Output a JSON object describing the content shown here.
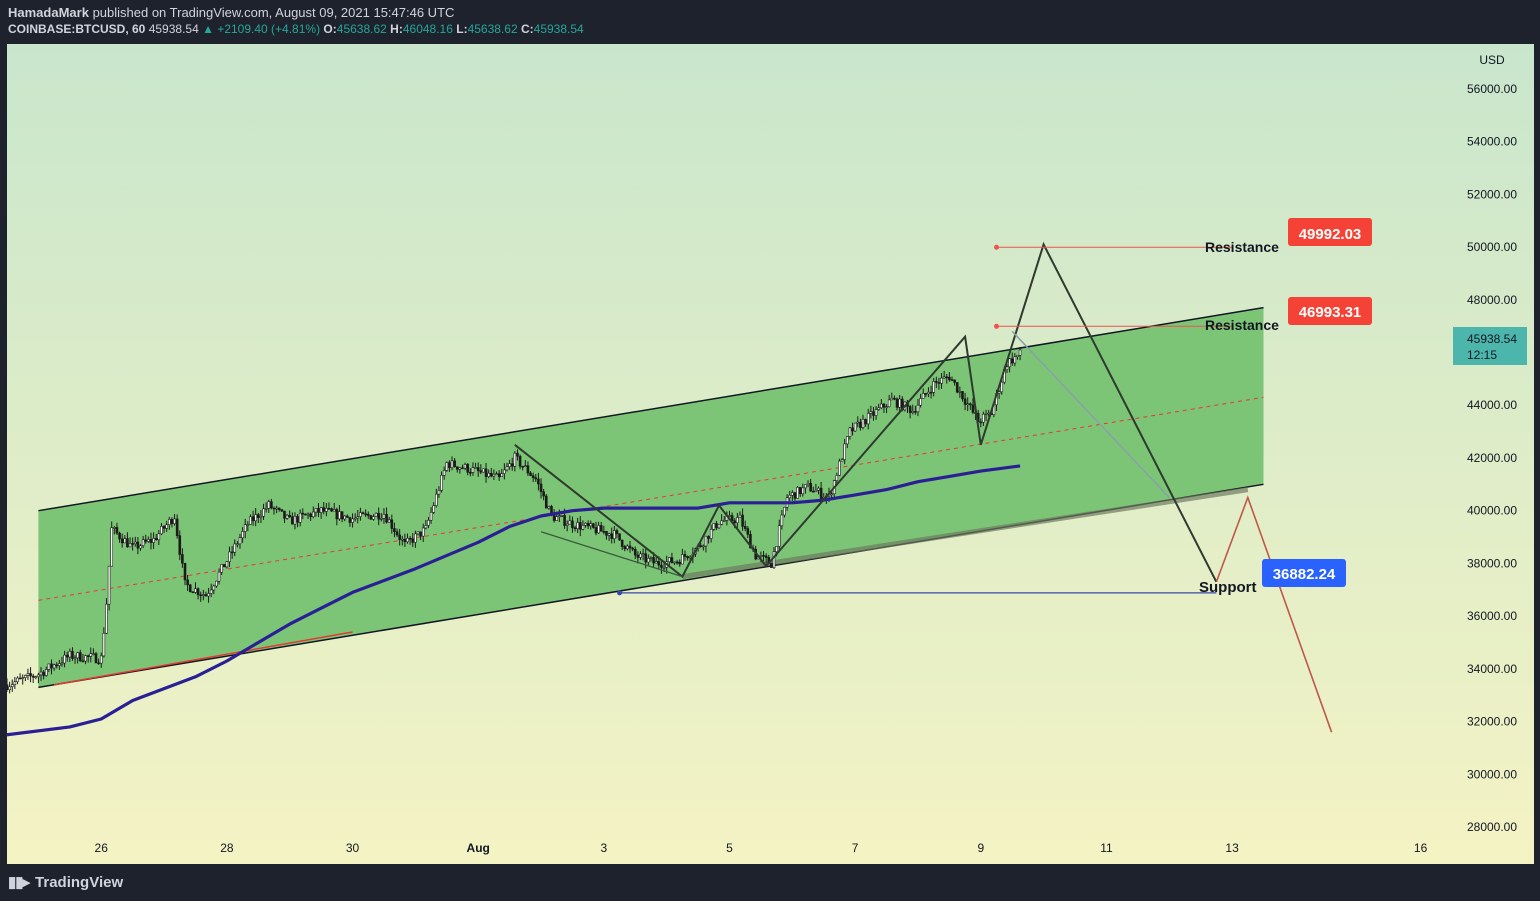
{
  "header": {
    "author": "HamadaMark",
    "published_text": "published on TradingView.com, August 09, 2021 15:47:46 UTC",
    "symbol": "COINBASE:BTCUSD, 60",
    "last": "45938.54",
    "change": "▲ +2109.40 (+4.81%)",
    "o_label": "O:",
    "o": "45638.62",
    "h_label": "H:",
    "h": "46048.16",
    "l_label": "L:",
    "l": "45638.62",
    "c_label": "C:",
    "c": "45938.54"
  },
  "footer": {
    "brand": "TradingView",
    "logo_icon": "tradingview-logo-icon"
  },
  "colors": {
    "channel_fill": "#7cc576",
    "bg_top": "#c9e6cc",
    "bg_bottom": "#f4f3c4",
    "ma": "#2a1f95",
    "candle": "#1b1b1b",
    "resistance_tag": "#f44336",
    "support_tag": "#2962ff",
    "price_tag": "#4db6ac"
  },
  "chart_data": {
    "type": "candlestick",
    "currency_label": "USD",
    "x_start": "2021-07-24T12:00",
    "x_end": "2021-08-16T12:00",
    "ylim": [
      26600,
      57700
    ],
    "y_ticks": [
      "56000.00",
      "54000.00",
      "52000.00",
      "50000.00",
      "48000.00",
      "46000.00",
      "44000.00",
      "42000.00",
      "40000.00",
      "38000.00",
      "36000.00",
      "34000.00",
      "32000.00",
      "30000.00",
      "28000.00"
    ],
    "y_tick_values": [
      56000,
      54000,
      52000,
      50000,
      48000,
      46000,
      44000,
      42000,
      40000,
      38000,
      36000,
      34000,
      32000,
      30000,
      28000
    ],
    "x_ticks": [
      {
        "label": "26",
        "t": "2021-07-26"
      },
      {
        "label": "28",
        "t": "2021-07-28"
      },
      {
        "label": "30",
        "t": "2021-07-30"
      },
      {
        "label": "Aug",
        "t": "2021-08-01",
        "bold": true
      },
      {
        "label": "3",
        "t": "2021-08-03"
      },
      {
        "label": "5",
        "t": "2021-08-05"
      },
      {
        "label": "7",
        "t": "2021-08-07"
      },
      {
        "label": "9",
        "t": "2021-08-09"
      },
      {
        "label": "11",
        "t": "2021-08-11"
      },
      {
        "label": "13",
        "t": "2021-08-13"
      },
      {
        "label": "16",
        "t": "2021-08-16"
      }
    ],
    "price_anchors": [
      [
        "2021-07-24T12:00",
        33400
      ],
      [
        "2021-07-25T00:00",
        33800
      ],
      [
        "2021-07-25T12:00",
        34500
      ],
      [
        "2021-07-26T00:00",
        34400
      ],
      [
        "2021-07-26T02:00",
        36500
      ],
      [
        "2021-07-26T04:00",
        39300
      ],
      [
        "2021-07-26T12:00",
        38600
      ],
      [
        "2021-07-26T20:00",
        38900
      ],
      [
        "2021-07-27T04:00",
        39800
      ],
      [
        "2021-07-27T08:00",
        37200
      ],
      [
        "2021-07-27T16:00",
        36800
      ],
      [
        "2021-07-28T00:00",
        38100
      ],
      [
        "2021-07-28T08:00",
        39500
      ],
      [
        "2021-07-28T16:00",
        40200
      ],
      [
        "2021-07-29T00:00",
        39600
      ],
      [
        "2021-07-29T12:00",
        40000
      ],
      [
        "2021-07-30T00:00",
        39700
      ],
      [
        "2021-07-30T12:00",
        39900
      ],
      [
        "2021-07-30T20:00",
        38700
      ],
      [
        "2021-07-31T04:00",
        39300
      ],
      [
        "2021-07-31T12:00",
        41800
      ],
      [
        "2021-07-31T20:00",
        41600
      ],
      [
        "2021-08-01T08:00",
        41200
      ],
      [
        "2021-08-01T14:00",
        42000
      ],
      [
        "2021-08-01T22:00",
        41200
      ],
      [
        "2021-08-02T04:00",
        39800
      ],
      [
        "2021-08-02T12:00",
        39500
      ],
      [
        "2021-08-02T20:00",
        39300
      ],
      [
        "2021-08-03T04:00",
        39100
      ],
      [
        "2021-08-03T12:00",
        38300
      ],
      [
        "2021-08-03T20:00",
        38000
      ],
      [
        "2021-08-04T04:00",
        38100
      ],
      [
        "2021-08-04T12:00",
        38600
      ],
      [
        "2021-08-04T20:00",
        39600
      ],
      [
        "2021-08-05T04:00",
        39700
      ],
      [
        "2021-08-05T10:00",
        38300
      ],
      [
        "2021-08-05T16:00",
        38000
      ],
      [
        "2021-08-05T22:00",
        40500
      ],
      [
        "2021-08-06T06:00",
        40900
      ],
      [
        "2021-08-06T14:00",
        40500
      ],
      [
        "2021-08-06T22:00",
        43000
      ],
      [
        "2021-08-07T06:00",
        43600
      ],
      [
        "2021-08-07T14:00",
        44200
      ],
      [
        "2021-08-07T22:00",
        43800
      ],
      [
        "2021-08-08T06:00",
        44800
      ],
      [
        "2021-08-08T12:00",
        45100
      ],
      [
        "2021-08-08T18:00",
        44200
      ],
      [
        "2021-08-08T23:00",
        43400
      ],
      [
        "2021-08-09T04:00",
        43700
      ],
      [
        "2021-08-09T10:00",
        45600
      ],
      [
        "2021-08-09T15:00",
        45938
      ]
    ],
    "series": [
      {
        "name": "moving-average",
        "points": [
          [
            "2021-07-24T12:00",
            31500
          ],
          [
            "2021-07-25T12:00",
            31800
          ],
          [
            "2021-07-26T00:00",
            32100
          ],
          [
            "2021-07-26T12:00",
            32800
          ],
          [
            "2021-07-27T12:00",
            33700
          ],
          [
            "2021-07-28T00:00",
            34300
          ],
          [
            "2021-07-28T12:00",
            35000
          ],
          [
            "2021-07-29T00:00",
            35700
          ],
          [
            "2021-07-29T12:00",
            36300
          ],
          [
            "2021-07-30T00:00",
            36900
          ],
          [
            "2021-07-31T00:00",
            37800
          ],
          [
            "2021-08-01T00:00",
            38800
          ],
          [
            "2021-08-01T12:00",
            39400
          ],
          [
            "2021-08-02T00:00",
            39800
          ],
          [
            "2021-08-02T12:00",
            40000
          ],
          [
            "2021-08-03T00:00",
            40100
          ],
          [
            "2021-08-03T12:00",
            40100
          ],
          [
            "2021-08-04T00:00",
            40100
          ],
          [
            "2021-08-04T12:00",
            40100
          ],
          [
            "2021-08-05T00:00",
            40300
          ],
          [
            "2021-08-05T12:00",
            40300
          ],
          [
            "2021-08-06T00:00",
            40300
          ],
          [
            "2021-08-06T12:00",
            40400
          ],
          [
            "2021-08-07T00:00",
            40600
          ],
          [
            "2021-08-07T12:00",
            40800
          ],
          [
            "2021-08-08T00:00",
            41100
          ],
          [
            "2021-08-08T12:00",
            41300
          ],
          [
            "2021-08-09T00:00",
            41500
          ],
          [
            "2021-08-09T15:00",
            41700
          ]
        ]
      }
    ],
    "drawings": {
      "channel": {
        "upper": [
          [
            "2021-07-25T00:00",
            40000
          ],
          [
            "2021-08-13T12:00",
            47700
          ]
        ],
        "lower": [
          [
            "2021-07-25T00:00",
            33300
          ],
          [
            "2021-08-13T12:00",
            41000
          ]
        ],
        "mid": [
          [
            "2021-07-25T00:00",
            36600
          ],
          [
            "2021-08-13T12:00",
            44300
          ]
        ]
      },
      "pattern_path": [
        [
          "2021-08-01T14:00",
          42500
        ],
        [
          "2021-08-04T06:00",
          37500
        ],
        [
          "2021-08-04T20:00",
          40200
        ],
        [
          "2021-08-05T14:00",
          37900
        ],
        [
          "2021-08-08T18:00",
          46600
        ],
        [
          "2021-08-09T00:00",
          42500
        ],
        [
          "2021-08-10T00:00",
          50100
        ],
        [
          "2021-08-12T18:00",
          37300
        ]
      ],
      "projection_path": [
        [
          "2021-08-12T18:00",
          37300
        ],
        [
          "2021-08-13T06:00",
          40500
        ],
        [
          "2021-08-14T14:00",
          31600
        ]
      ],
      "triangle_lower": [
        [
          "2021-08-02T00:00",
          39200
        ],
        [
          "2021-08-04T06:00",
          37500
        ]
      ],
      "fade_line": [
        [
          "2021-08-09T12:00",
          46800
        ],
        [
          "2021-08-12T00:00",
          40500
        ]
      ],
      "bottom_shade": [
        [
          "2021-08-04T06:00",
          37500
        ],
        [
          "2021-08-13T06:00",
          40800
        ]
      ],
      "red_base": [
        [
          "2021-07-25T06:00",
          33400
        ],
        [
          "2021-07-30T00:00",
          35400
        ]
      ],
      "resistance_lines": [
        {
          "from": "2021-08-09T06:00",
          "to": "2021-08-13T00:00",
          "value": 49992.03
        },
        {
          "from": "2021-08-09T06:00",
          "to": "2021-08-13T00:00",
          "value": 46993.31
        }
      ],
      "support_line": {
        "from": "2021-08-03T06:00",
        "to": "2021-08-12T18:00",
        "value": 36882.24
      }
    },
    "labels": {
      "resistance_top_text": "Resistance",
      "resistance_top_value": "49992.03",
      "resistance_mid_text": "Resistance",
      "resistance_mid_value": "46993.31",
      "support_text": "Support",
      "support_value": "36882.24",
      "last_price": "45938.54",
      "countdown": "12:15"
    }
  }
}
